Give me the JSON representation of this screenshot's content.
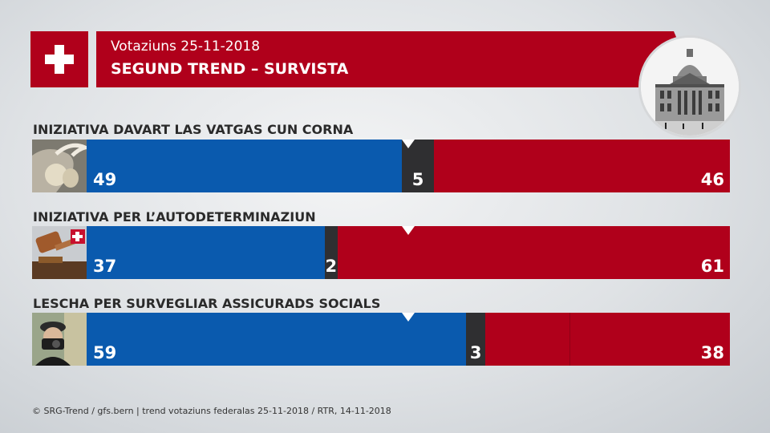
{
  "header": {
    "subtitle": "Votaziuns 25-11-2018",
    "title": "SEGUND TREND – SURVISTA",
    "flag_icon": "swiss-cross-icon",
    "image_icon": "federal-palace-icon"
  },
  "colors": {
    "yes": "#0a5aae",
    "neutral": "#2f2f31",
    "no": "#b0001b"
  },
  "chart_data": {
    "type": "bar",
    "orientation": "horizontal-stacked",
    "stack_order": [
      "yes",
      "neutral",
      "no"
    ],
    "midpoint_marker": 50,
    "xlim": [
      0,
      100
    ],
    "rows": [
      {
        "label": "INIZIATIVA DAVART LAS VATGAS CUN CORNA",
        "yes": 49,
        "neutral": 5,
        "no": 46,
        "icon": "cow-horn-icon"
      },
      {
        "label": "INIZIATIVA PER L’AUTODETERMINAZIUN",
        "yes": 37,
        "neutral": 2,
        "no": 61,
        "icon": "judge-gavel-icon"
      },
      {
        "label": "LESCHA PER SURVEGLIAR ASSICURADS SOCIALS",
        "yes": 59,
        "neutral": 3,
        "no": 38,
        "icon": "detective-camera-icon"
      }
    ]
  },
  "footer": "© SRG-Trend / gfs.bern  |  trend votaziuns federalas 25-11-2018 / RTR, 14-11-2018"
}
